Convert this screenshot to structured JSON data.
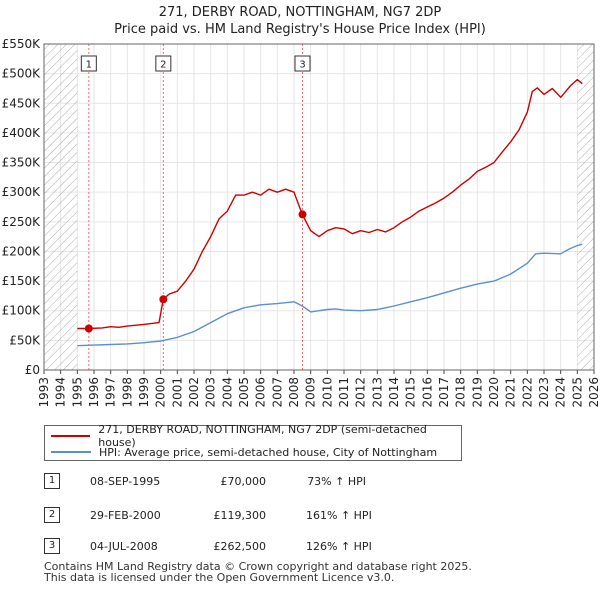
{
  "title": "271, DERBY ROAD, NOTTINGHAM, NG7 2DP",
  "subtitle": "Price paid vs. HM Land Registry's House Price Index (HPI)",
  "colors": {
    "property": "#cc0000",
    "hpi": "#5b8fd1",
    "marker_line": "#ff6666",
    "hatch": "#999999"
  },
  "chart_data": {
    "type": "line",
    "title": "271, DERBY ROAD, NOTTINGHAM, NG7 2DP",
    "subtitle": "Price paid vs. HM Land Registry's House Price Index (HPI)",
    "xlim": [
      1993,
      2026
    ],
    "ylim": [
      0,
      550000
    ],
    "x_ticks": [
      1993,
      1994,
      1995,
      1996,
      1997,
      1998,
      1999,
      2000,
      2001,
      2002,
      2003,
      2004,
      2005,
      2006,
      2007,
      2008,
      2009,
      2010,
      2011,
      2012,
      2013,
      2014,
      2015,
      2016,
      2017,
      2018,
      2019,
      2020,
      2021,
      2022,
      2023,
      2024,
      2025,
      2026
    ],
    "y_ticks": [
      {
        "value": 0,
        "label": "£0"
      },
      {
        "value": 50000,
        "label": "£50K"
      },
      {
        "value": 100000,
        "label": "£100K"
      },
      {
        "value": 150000,
        "label": "£150K"
      },
      {
        "value": 200000,
        "label": "£200K"
      },
      {
        "value": 250000,
        "label": "£250K"
      },
      {
        "value": 300000,
        "label": "£300K"
      },
      {
        "value": 350000,
        "label": "£350K"
      },
      {
        "value": 400000,
        "label": "£400K"
      },
      {
        "value": 450000,
        "label": "£450K"
      },
      {
        "value": 500000,
        "label": "£500K"
      },
      {
        "value": 550000,
        "label": "£550K"
      }
    ],
    "hatch_before": 1995.0,
    "hatch_after": 2025.0,
    "grid": true,
    "series": [
      {
        "name": "271, DERBY ROAD, NOTTINGHAM, NG7 2DP (semi-detached house)",
        "color": "#cc0000",
        "x": [
          1995.0,
          1995.69,
          1996.5,
          1997,
          1997.5,
          1998,
          1999,
          1999.9,
          2000.16,
          2000.5,
          2001,
          2001.5,
          2002,
          2002.5,
          2003,
          2003.5,
          2004,
          2004.5,
          2005,
          2005.5,
          2006,
          2006.5,
          2007,
          2007.5,
          2008,
          2008.5,
          2009,
          2009.5,
          2010,
          2010.5,
          2011,
          2011.5,
          2012,
          2012.5,
          2013,
          2013.5,
          2014,
          2014.5,
          2015,
          2015.5,
          2016,
          2016.5,
          2017,
          2017.5,
          2018,
          2018.5,
          2019,
          2019.5,
          2020,
          2020.5,
          2021,
          2021.5,
          2022,
          2022.3,
          2022.6,
          2023,
          2023.5,
          2024,
          2024.3,
          2024.6,
          2025,
          2025.3
        ],
        "y": [
          70000,
          70000,
          71000,
          73000,
          72000,
          74000,
          77000,
          80000,
          119300,
          128000,
          133000,
          150000,
          170000,
          200000,
          225000,
          255000,
          268000,
          295000,
          295000,
          300000,
          295000,
          305000,
          300000,
          305000,
          300000,
          262500,
          235000,
          225000,
          235000,
          240000,
          238000,
          230000,
          235000,
          232000,
          237000,
          233000,
          240000,
          250000,
          258000,
          268000,
          275000,
          282000,
          290000,
          300000,
          312000,
          322000,
          335000,
          342000,
          350000,
          368000,
          385000,
          405000,
          435000,
          470000,
          476000,
          465000,
          475000,
          460000,
          470000,
          480000,
          490000,
          483000
        ]
      },
      {
        "name": "HPI: Average price, semi-detached house, City of Nottingham",
        "color": "#5b8fd1",
        "x": [
          1995,
          1996,
          1997,
          1998,
          1999,
          2000,
          2001,
          2002,
          2003,
          2004,
          2005,
          2006,
          2007,
          2008,
          2008.5,
          2009,
          2009.5,
          2010,
          2010.5,
          2011,
          2012,
          2013,
          2014,
          2015,
          2016,
          2017,
          2018,
          2019,
          2020,
          2021,
          2022,
          2022.5,
          2023,
          2024,
          2024.5,
          2025,
          2025.3
        ],
        "y": [
          41000,
          42000,
          43000,
          44000,
          46000,
          49000,
          55000,
          65000,
          80000,
          95000,
          105000,
          110000,
          112000,
          115000,
          108000,
          98000,
          100000,
          102000,
          103000,
          101000,
          100000,
          102000,
          108000,
          115000,
          122000,
          130000,
          138000,
          145000,
          150000,
          162000,
          180000,
          196000,
          197000,
          196000,
          204000,
          210000,
          212000
        ]
      }
    ],
    "transactions": [
      {
        "num": "1",
        "x": 1995.69,
        "y": 70000,
        "date": "08-SEP-1995",
        "price": "£70,000",
        "hpi": "73% ↑ HPI"
      },
      {
        "num": "2",
        "x": 2000.16,
        "y": 119300,
        "date": "29-FEB-2000",
        "price": "£119,300",
        "hpi": "161% ↑ HPI"
      },
      {
        "num": "3",
        "x": 2008.51,
        "y": 262500,
        "date": "04-JUL-2008",
        "price": "£262,500",
        "hpi": "126% ↑ HPI"
      }
    ]
  },
  "legend": {
    "property_label": "271, DERBY ROAD, NOTTINGHAM, NG7 2DP (semi-detached house)",
    "hpi_label": "HPI: Average price, semi-detached house, City of Nottingham"
  },
  "footer": {
    "line1": "Contains HM Land Registry data © Crown copyright and database right 2025.",
    "line2": "This data is licensed under the Open Government Licence v3.0."
  }
}
